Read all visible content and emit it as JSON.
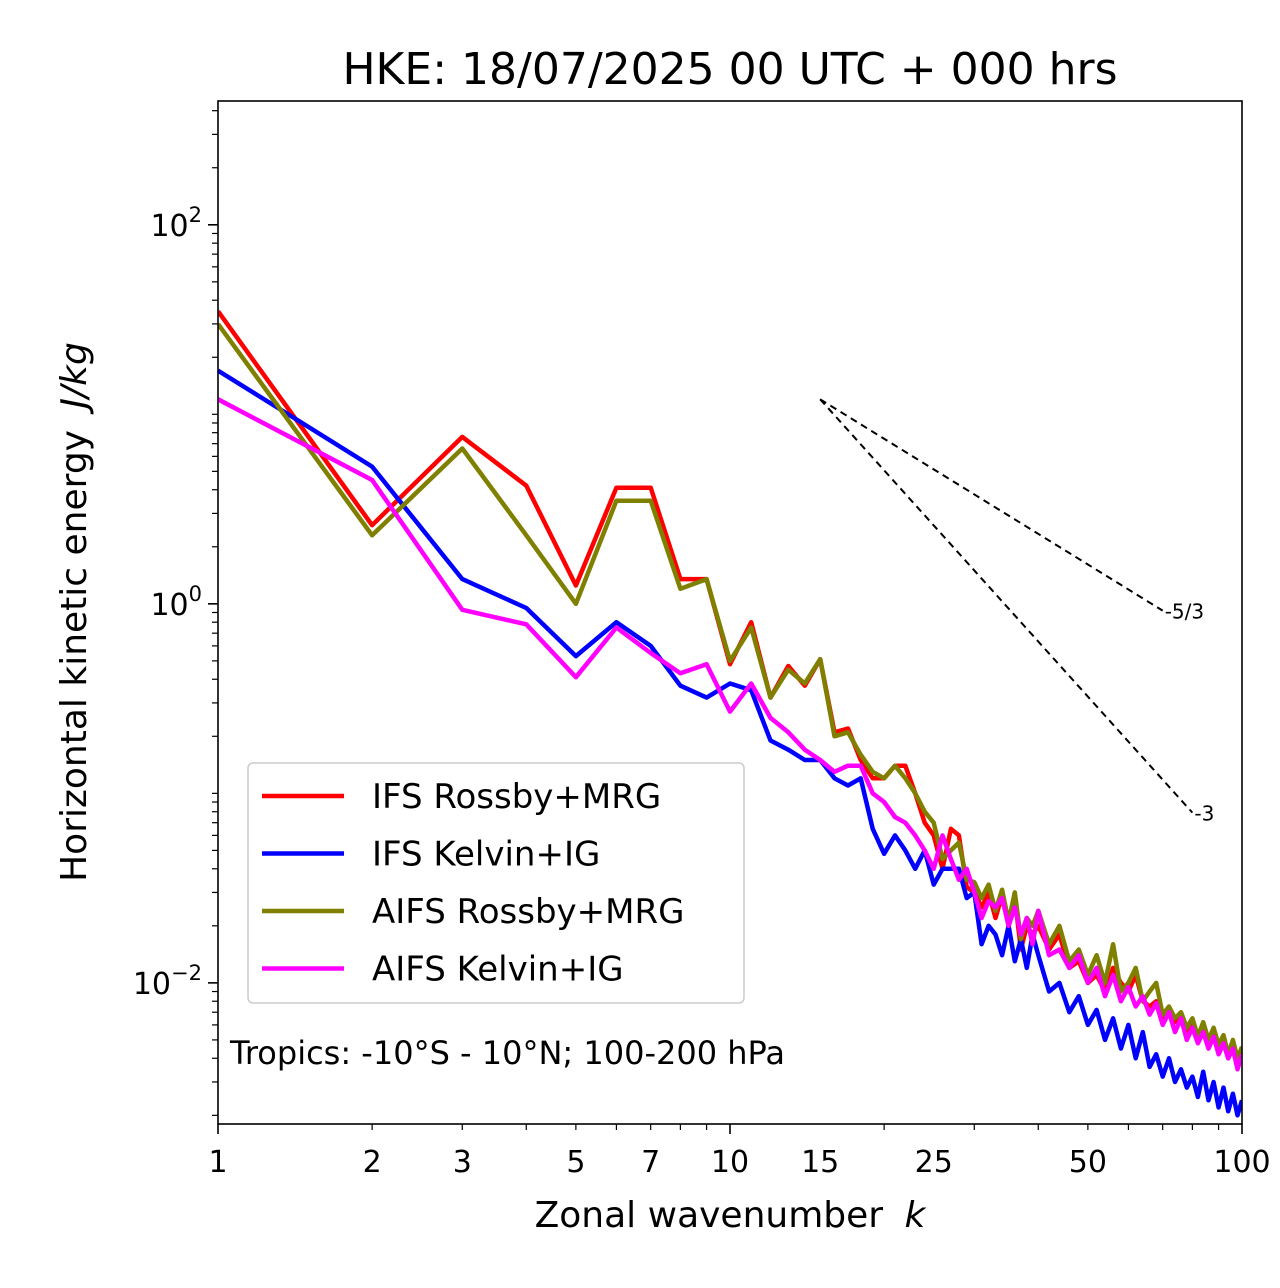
{
  "chart_data": {
    "type": "line",
    "title": "HKE: 18/07/2025 00 UTC + 000 hrs",
    "xlabel": "Zonal wavenumber",
    "xlabel_var": "k",
    "ylabel": "Horizontal kinetic energy",
    "ylabel_units": "J/kg",
    "xscale": "log",
    "yscale": "log",
    "xlim": [
      1,
      100
    ],
    "ylim": [
      0.0018,
      450
    ],
    "xticks": [
      1,
      2,
      3,
      5,
      7,
      10,
      15,
      25,
      50,
      100
    ],
    "xtick_labels": [
      "1",
      "2",
      "3",
      "5",
      "7",
      "10",
      "15",
      "25",
      "50",
      "100"
    ],
    "yticks": [
      0.01,
      1,
      100
    ],
    "ytick_labels": [
      {
        "base": "10",
        "exp": "−2"
      },
      {
        "base": "10",
        "exp": "0"
      },
      {
        "base": "10",
        "exp": "2"
      }
    ],
    "grid": false,
    "legend_position": "lower-left",
    "annotation": "Tropics: -10°S - 10°N; 100-200 hPa",
    "reference_slopes": [
      {
        "label": "-5/3",
        "slope": -1.6667,
        "x_start": 15,
        "y_start": 12,
        "x_end": 70
      },
      {
        "label": "-3",
        "slope": -3,
        "x_start": 15,
        "y_start": 12,
        "x_end": 80
      }
    ],
    "series": [
      {
        "name": "IFS Rossby+MRG",
        "color": "#ff0000",
        "x": [
          1,
          2,
          3,
          4,
          5,
          6,
          7,
          8,
          9,
          10,
          11,
          12,
          13,
          14,
          15,
          16,
          17,
          18,
          19,
          20,
          21,
          22,
          23,
          24,
          25,
          26,
          27,
          28,
          29,
          30,
          31,
          32,
          33,
          34,
          35,
          36,
          37,
          38,
          39,
          40,
          42,
          44,
          46,
          48,
          50,
          52,
          54,
          56,
          58,
          60,
          62,
          64,
          66,
          68,
          70,
          72,
          74,
          76,
          78,
          80,
          82,
          84,
          86,
          88,
          90,
          92,
          94,
          96,
          98,
          100
        ],
        "y": [
          35,
          2.6,
          7.6,
          4.2,
          1.25,
          4.1,
          4.1,
          1.35,
          1.35,
          0.48,
          0.8,
          0.32,
          0.47,
          0.37,
          0.51,
          0.21,
          0.22,
          0.15,
          0.12,
          0.12,
          0.14,
          0.14,
          0.1,
          0.07,
          0.06,
          0.04,
          0.065,
          0.06,
          0.032,
          0.03,
          0.025,
          0.03,
          0.022,
          0.029,
          0.02,
          0.028,
          0.015,
          0.02,
          0.018,
          0.02,
          0.015,
          0.018,
          0.012,
          0.013,
          0.01,
          0.011,
          0.009,
          0.012,
          0.01,
          0.009,
          0.011,
          0.008,
          0.0075,
          0.008,
          0.0065,
          0.0072,
          0.0062,
          0.0068,
          0.0055,
          0.006,
          0.005,
          0.0058,
          0.0048,
          0.0055,
          0.0045,
          0.005,
          0.004,
          0.0048,
          0.0038,
          0.0045
        ]
      },
      {
        "name": "IFS Kelvin+IG",
        "color": "#0000ff",
        "x": [
          1,
          2,
          3,
          4,
          5,
          6,
          7,
          8,
          9,
          10,
          11,
          12,
          13,
          14,
          15,
          16,
          17,
          18,
          19,
          20,
          21,
          22,
          23,
          24,
          25,
          26,
          27,
          28,
          29,
          30,
          31,
          32,
          33,
          34,
          35,
          36,
          37,
          38,
          39,
          40,
          42,
          44,
          46,
          48,
          50,
          52,
          54,
          56,
          58,
          60,
          62,
          64,
          66,
          68,
          70,
          72,
          74,
          76,
          78,
          80,
          82,
          84,
          86,
          88,
          90,
          92,
          94,
          96,
          98,
          100
        ],
        "y": [
          17,
          5.3,
          1.35,
          0.95,
          0.53,
          0.8,
          0.6,
          0.37,
          0.32,
          0.38,
          0.35,
          0.19,
          0.17,
          0.15,
          0.15,
          0.12,
          0.11,
          0.12,
          0.065,
          0.048,
          0.06,
          0.05,
          0.04,
          0.05,
          0.033,
          0.04,
          0.04,
          0.04,
          0.028,
          0.03,
          0.016,
          0.02,
          0.018,
          0.014,
          0.02,
          0.013,
          0.017,
          0.012,
          0.018,
          0.014,
          0.009,
          0.01,
          0.007,
          0.0085,
          0.006,
          0.0072,
          0.005,
          0.0065,
          0.0045,
          0.006,
          0.004,
          0.0055,
          0.0036,
          0.0042,
          0.0032,
          0.004,
          0.003,
          0.0035,
          0.0028,
          0.0032,
          0.0025,
          0.0034,
          0.0024,
          0.003,
          0.0022,
          0.0028,
          0.0021,
          0.0026,
          0.002,
          0.0024
        ]
      },
      {
        "name": "AIFS Rossby+MRG",
        "color": "#808000",
        "x": [
          1,
          2,
          3,
          4,
          5,
          6,
          7,
          8,
          9,
          10,
          11,
          12,
          13,
          14,
          15,
          16,
          17,
          18,
          19,
          20,
          21,
          22,
          23,
          24,
          25,
          26,
          27,
          28,
          29,
          30,
          31,
          32,
          33,
          34,
          35,
          36,
          37,
          38,
          39,
          40,
          42,
          44,
          46,
          48,
          50,
          52,
          54,
          56,
          58,
          60,
          62,
          64,
          66,
          68,
          70,
          72,
          74,
          76,
          78,
          80,
          82,
          84,
          86,
          88,
          90,
          92,
          94,
          96,
          98,
          100
        ],
        "y": [
          30,
          2.3,
          6.6,
          2.3,
          1.0,
          3.5,
          3.5,
          1.2,
          1.35,
          0.5,
          0.75,
          0.32,
          0.45,
          0.38,
          0.51,
          0.2,
          0.21,
          0.16,
          0.13,
          0.12,
          0.14,
          0.12,
          0.1,
          0.08,
          0.07,
          0.045,
          0.05,
          0.055,
          0.035,
          0.034,
          0.028,
          0.033,
          0.024,
          0.031,
          0.021,
          0.03,
          0.017,
          0.022,
          0.02,
          0.024,
          0.016,
          0.02,
          0.013,
          0.015,
          0.011,
          0.014,
          0.01,
          0.016,
          0.009,
          0.01,
          0.012,
          0.008,
          0.009,
          0.01,
          0.0068,
          0.0075,
          0.0065,
          0.007,
          0.0058,
          0.0065,
          0.0052,
          0.0062,
          0.005,
          0.0058,
          0.0047,
          0.0053,
          0.0042,
          0.005,
          0.004,
          0.0046
        ]
      },
      {
        "name": "AIFS Kelvin+IG",
        "color": "#ff00ff",
        "x": [
          1,
          2,
          3,
          4,
          5,
          6,
          7,
          8,
          9,
          10,
          11,
          12,
          13,
          14,
          15,
          16,
          17,
          18,
          19,
          20,
          21,
          22,
          23,
          24,
          25,
          26,
          27,
          28,
          29,
          30,
          31,
          32,
          33,
          34,
          35,
          36,
          37,
          38,
          39,
          40,
          42,
          44,
          46,
          48,
          50,
          52,
          54,
          56,
          58,
          60,
          62,
          64,
          66,
          68,
          70,
          72,
          74,
          76,
          78,
          80,
          82,
          84,
          86,
          88,
          90,
          92,
          94,
          96,
          98,
          100
        ],
        "y": [
          12,
          4.5,
          0.93,
          0.78,
          0.41,
          0.75,
          0.55,
          0.43,
          0.48,
          0.27,
          0.38,
          0.25,
          0.21,
          0.17,
          0.15,
          0.13,
          0.14,
          0.14,
          0.1,
          0.09,
          0.075,
          0.07,
          0.06,
          0.05,
          0.04,
          0.06,
          0.045,
          0.035,
          0.04,
          0.03,
          0.022,
          0.027,
          0.025,
          0.028,
          0.02,
          0.025,
          0.018,
          0.022,
          0.016,
          0.024,
          0.014,
          0.015,
          0.012,
          0.014,
          0.01,
          0.012,
          0.0085,
          0.011,
          0.008,
          0.0095,
          0.0075,
          0.0085,
          0.0068,
          0.0078,
          0.006,
          0.007,
          0.0055,
          0.0065,
          0.005,
          0.0058,
          0.0048,
          0.0055,
          0.0045,
          0.0052,
          0.0042,
          0.0048,
          0.004,
          0.0045,
          0.0035,
          0.0042
        ]
      }
    ]
  }
}
